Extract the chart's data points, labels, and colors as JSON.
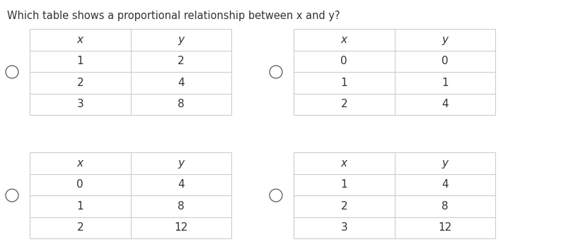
{
  "question": "Which table shows a proportional relationship between x and y?",
  "tables": [
    {
      "headers": [
        "x",
        "y"
      ],
      "rows": [
        [
          "1",
          "2"
        ],
        [
          "2",
          "4"
        ],
        [
          "3",
          "8"
        ]
      ]
    },
    {
      "headers": [
        "x",
        "y"
      ],
      "rows": [
        [
          "0",
          "0"
        ],
        [
          "1",
          "1"
        ],
        [
          "2",
          "4"
        ]
      ]
    },
    {
      "headers": [
        "x",
        "y"
      ],
      "rows": [
        [
          "0",
          "4"
        ],
        [
          "1",
          "8"
        ],
        [
          "2",
          "12"
        ]
      ]
    },
    {
      "headers": [
        "x",
        "y"
      ],
      "rows": [
        [
          "1",
          "4"
        ],
        [
          "2",
          "8"
        ],
        [
          "3",
          "12"
        ]
      ]
    }
  ],
  "background_color": "#ffffff",
  "border_color": "#cccccc",
  "text_color": "#333333",
  "radio_color": "#666666",
  "question_fontsize": 10.5,
  "header_fontsize": 11,
  "cell_fontsize": 11,
  "fig_width": 8.0,
  "fig_height": 3.53,
  "fig_dpi": 100
}
